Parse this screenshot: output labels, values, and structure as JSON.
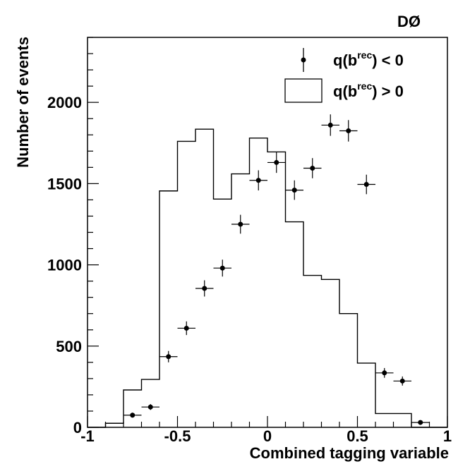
{
  "chart_data": {
    "type": "histogram",
    "experiment_label": "DØ",
    "xlabel": "Combined tagging variable",
    "ylabel": "Number of events",
    "xlim": [
      -1,
      1
    ],
    "ylim": [
      0,
      2400
    ],
    "x_ticks": [
      -1,
      -0.5,
      0,
      0.5,
      1
    ],
    "x_tick_labels": [
      "-1",
      "-0.5",
      "0",
      "0.5",
      "1"
    ],
    "y_ticks": [
      0,
      500,
      1000,
      1500,
      2000
    ],
    "y_tick_labels": [
      "0",
      "500",
      "1000",
      "1500",
      "2000"
    ],
    "bin_edges": [
      -1.0,
      -0.9,
      -0.8,
      -0.7,
      -0.6,
      -0.5,
      -0.4,
      -0.3,
      -0.2,
      -0.1,
      0.0,
      0.1,
      0.2,
      0.3,
      0.4,
      0.5,
      0.6,
      0.7,
      0.8,
      0.9,
      1.0
    ],
    "legend": {
      "position": "top-right",
      "entries": [
        {
          "series": "points",
          "label_main": "q(b",
          "label_sup": "rec",
          "label_tail": ") < 0"
        },
        {
          "series": "histogram",
          "label_main": "q(b",
          "label_sup": "rec",
          "label_tail": ") > 0"
        }
      ]
    },
    "series": [
      {
        "kind": "step-histogram",
        "values": [
          0,
          25,
          230,
          295,
          1455,
          1760,
          1835,
          1405,
          1560,
          1780,
          1695,
          1265,
          935,
          910,
          700,
          395,
          85,
          85,
          0,
          0
        ]
      },
      {
        "kind": "points-with-errors",
        "x": [
          -0.75,
          -0.65,
          -0.55,
          -0.45,
          -0.35,
          -0.25,
          -0.15,
          -0.05,
          0.05,
          0.15,
          0.25,
          0.35,
          0.45,
          0.55,
          0.65,
          0.75,
          0.85
        ],
        "y": [
          75,
          125,
          435,
          610,
          855,
          980,
          1250,
          1520,
          1630,
          1460,
          1595,
          1860,
          1825,
          1495,
          335,
          285,
          30
        ],
        "yerr": [
          15,
          18,
          35,
          42,
          50,
          52,
          58,
          62,
          64,
          60,
          62,
          66,
          66,
          60,
          30,
          28,
          10
        ]
      }
    ]
  }
}
